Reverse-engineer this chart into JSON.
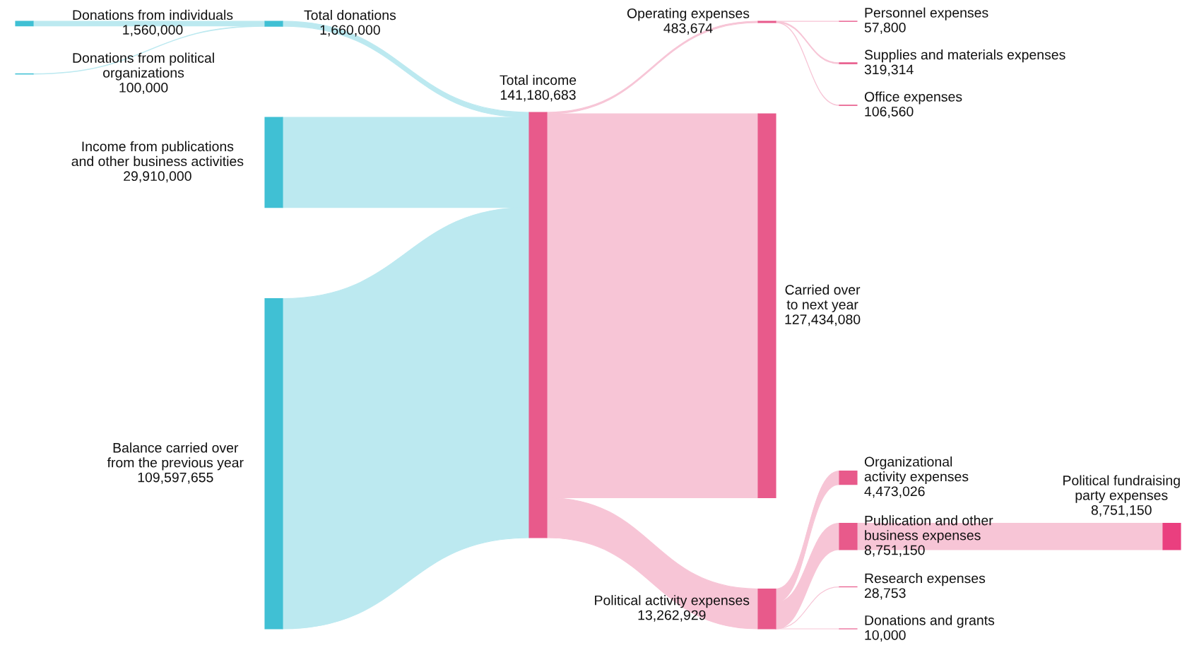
{
  "chart_data": {
    "type": "other",
    "categories": [
      "Donations from individuals",
      "Donations from political\norganizations",
      "Total donations",
      "Income from publications\nand other business activities",
      "Balance carried over\nfrom the previous year",
      "Total income",
      "Operating expenses",
      "Carried over\nto next year",
      "Political activity expenses",
      "Personnel expenses",
      "Supplies and materials expenses",
      "Office expenses",
      "Organizational\nactivity expenses",
      "Publication and other\nbusiness expenses",
      "Research expenses",
      "Donations and grants",
      "Political fundraising\nparty expenses"
    ],
    "values": [
      1560000,
      100000,
      1660000,
      29910000,
      109597655,
      141180683,
      483674,
      127434080,
      13262929,
      57800,
      319314,
      106560,
      4473026,
      8751150,
      28753,
      10000,
      8751150
    ],
    "value_labels": [
      "1,560,000",
      "100,000",
      "1,660,000",
      "29,910,000",
      "109,597,655",
      "141,180,683",
      "483,674",
      "127,434,080",
      "13,262,929",
      "57,800",
      "319,314",
      "106,560",
      "4,473,026",
      "8,751,150",
      "28,753",
      "10,000",
      "8,751,150"
    ],
    "colors": [
      "#40c0d4",
      "#40c0d4",
      "#40c0d4",
      "#40c0d4",
      "#40c0d4",
      "#e85a8b",
      "#e85a8b",
      "#e85a8b",
      "#e85a8b",
      "#e85a8b",
      "#e85a8b",
      "#e85a8b",
      "#e85a8b",
      "#e85a8b",
      "#e85a8b",
      "#e85a8b",
      "#ea3f7f"
    ],
    "cells": [
      [
        null,
        null,
        true,
        null,
        null,
        null,
        null,
        null,
        null,
        null,
        null,
        null,
        null,
        null,
        null,
        null,
        null
      ],
      [
        null,
        null,
        true,
        null,
        null,
        null,
        null,
        null,
        null,
        null,
        null,
        null,
        null,
        null,
        null,
        null,
        null
      ],
      [
        null,
        null,
        null,
        null,
        null,
        true,
        null,
        null,
        null,
        null,
        null,
        null,
        null,
        null,
        null,
        null,
        null
      ],
      [
        null,
        null,
        null,
        null,
        null,
        true,
        null,
        null,
        null,
        null,
        null,
        null,
        null,
        null,
        null,
        null,
        null
      ],
      [
        null,
        null,
        null,
        null,
        null,
        true,
        null,
        null,
        null,
        null,
        null,
        null,
        null,
        null,
        null,
        null,
        null
      ],
      [
        null,
        null,
        null,
        null,
        null,
        null,
        true,
        true,
        true,
        null,
        null,
        null,
        null,
        null,
        null,
        null,
        null
      ],
      [
        null,
        null,
        null,
        null,
        null,
        null,
        null,
        null,
        null,
        true,
        true,
        true,
        null,
        null,
        null,
        null,
        null
      ],
      [
        null,
        null,
        null,
        null,
        null,
        null,
        null,
        null,
        null,
        null,
        null,
        null,
        null,
        null,
        null,
        null,
        null
      ],
      [
        null,
        null,
        null,
        null,
        null,
        null,
        null,
        null,
        null,
        null,
        null,
        null,
        true,
        true,
        true,
        true,
        null
      ],
      [
        null,
        null,
        null,
        null,
        null,
        null,
        null,
        null,
        null,
        null,
        null,
        null,
        null,
        null,
        null,
        null,
        null
      ],
      [
        null,
        null,
        null,
        null,
        null,
        null,
        null,
        null,
        null,
        null,
        null,
        null,
        null,
        null,
        null,
        null,
        null
      ],
      [
        null,
        null,
        null,
        null,
        null,
        null,
        null,
        null,
        null,
        null,
        null,
        null,
        null,
        null,
        null,
        null,
        null
      ],
      [
        null,
        null,
        null,
        null,
        null,
        null,
        null,
        null,
        null,
        null,
        null,
        null,
        null,
        null,
        null,
        null,
        null
      ],
      [
        null,
        null,
        null,
        null,
        null,
        null,
        null,
        null,
        null,
        null,
        null,
        null,
        null,
        null,
        null,
        null,
        true
      ],
      [
        null,
        null,
        null,
        null,
        null,
        null,
        null,
        null,
        null,
        null,
        null,
        null,
        null,
        null,
        null,
        null,
        null
      ],
      [
        null,
        null,
        null,
        null,
        null,
        null,
        null,
        null,
        null,
        null,
        null,
        null,
        null,
        null,
        null,
        null,
        null
      ],
      [
        null,
        null,
        null,
        null,
        null,
        null,
        null,
        null,
        null,
        null,
        null,
        null,
        null,
        null,
        null,
        null,
        null
      ]
    ]
  }
}
